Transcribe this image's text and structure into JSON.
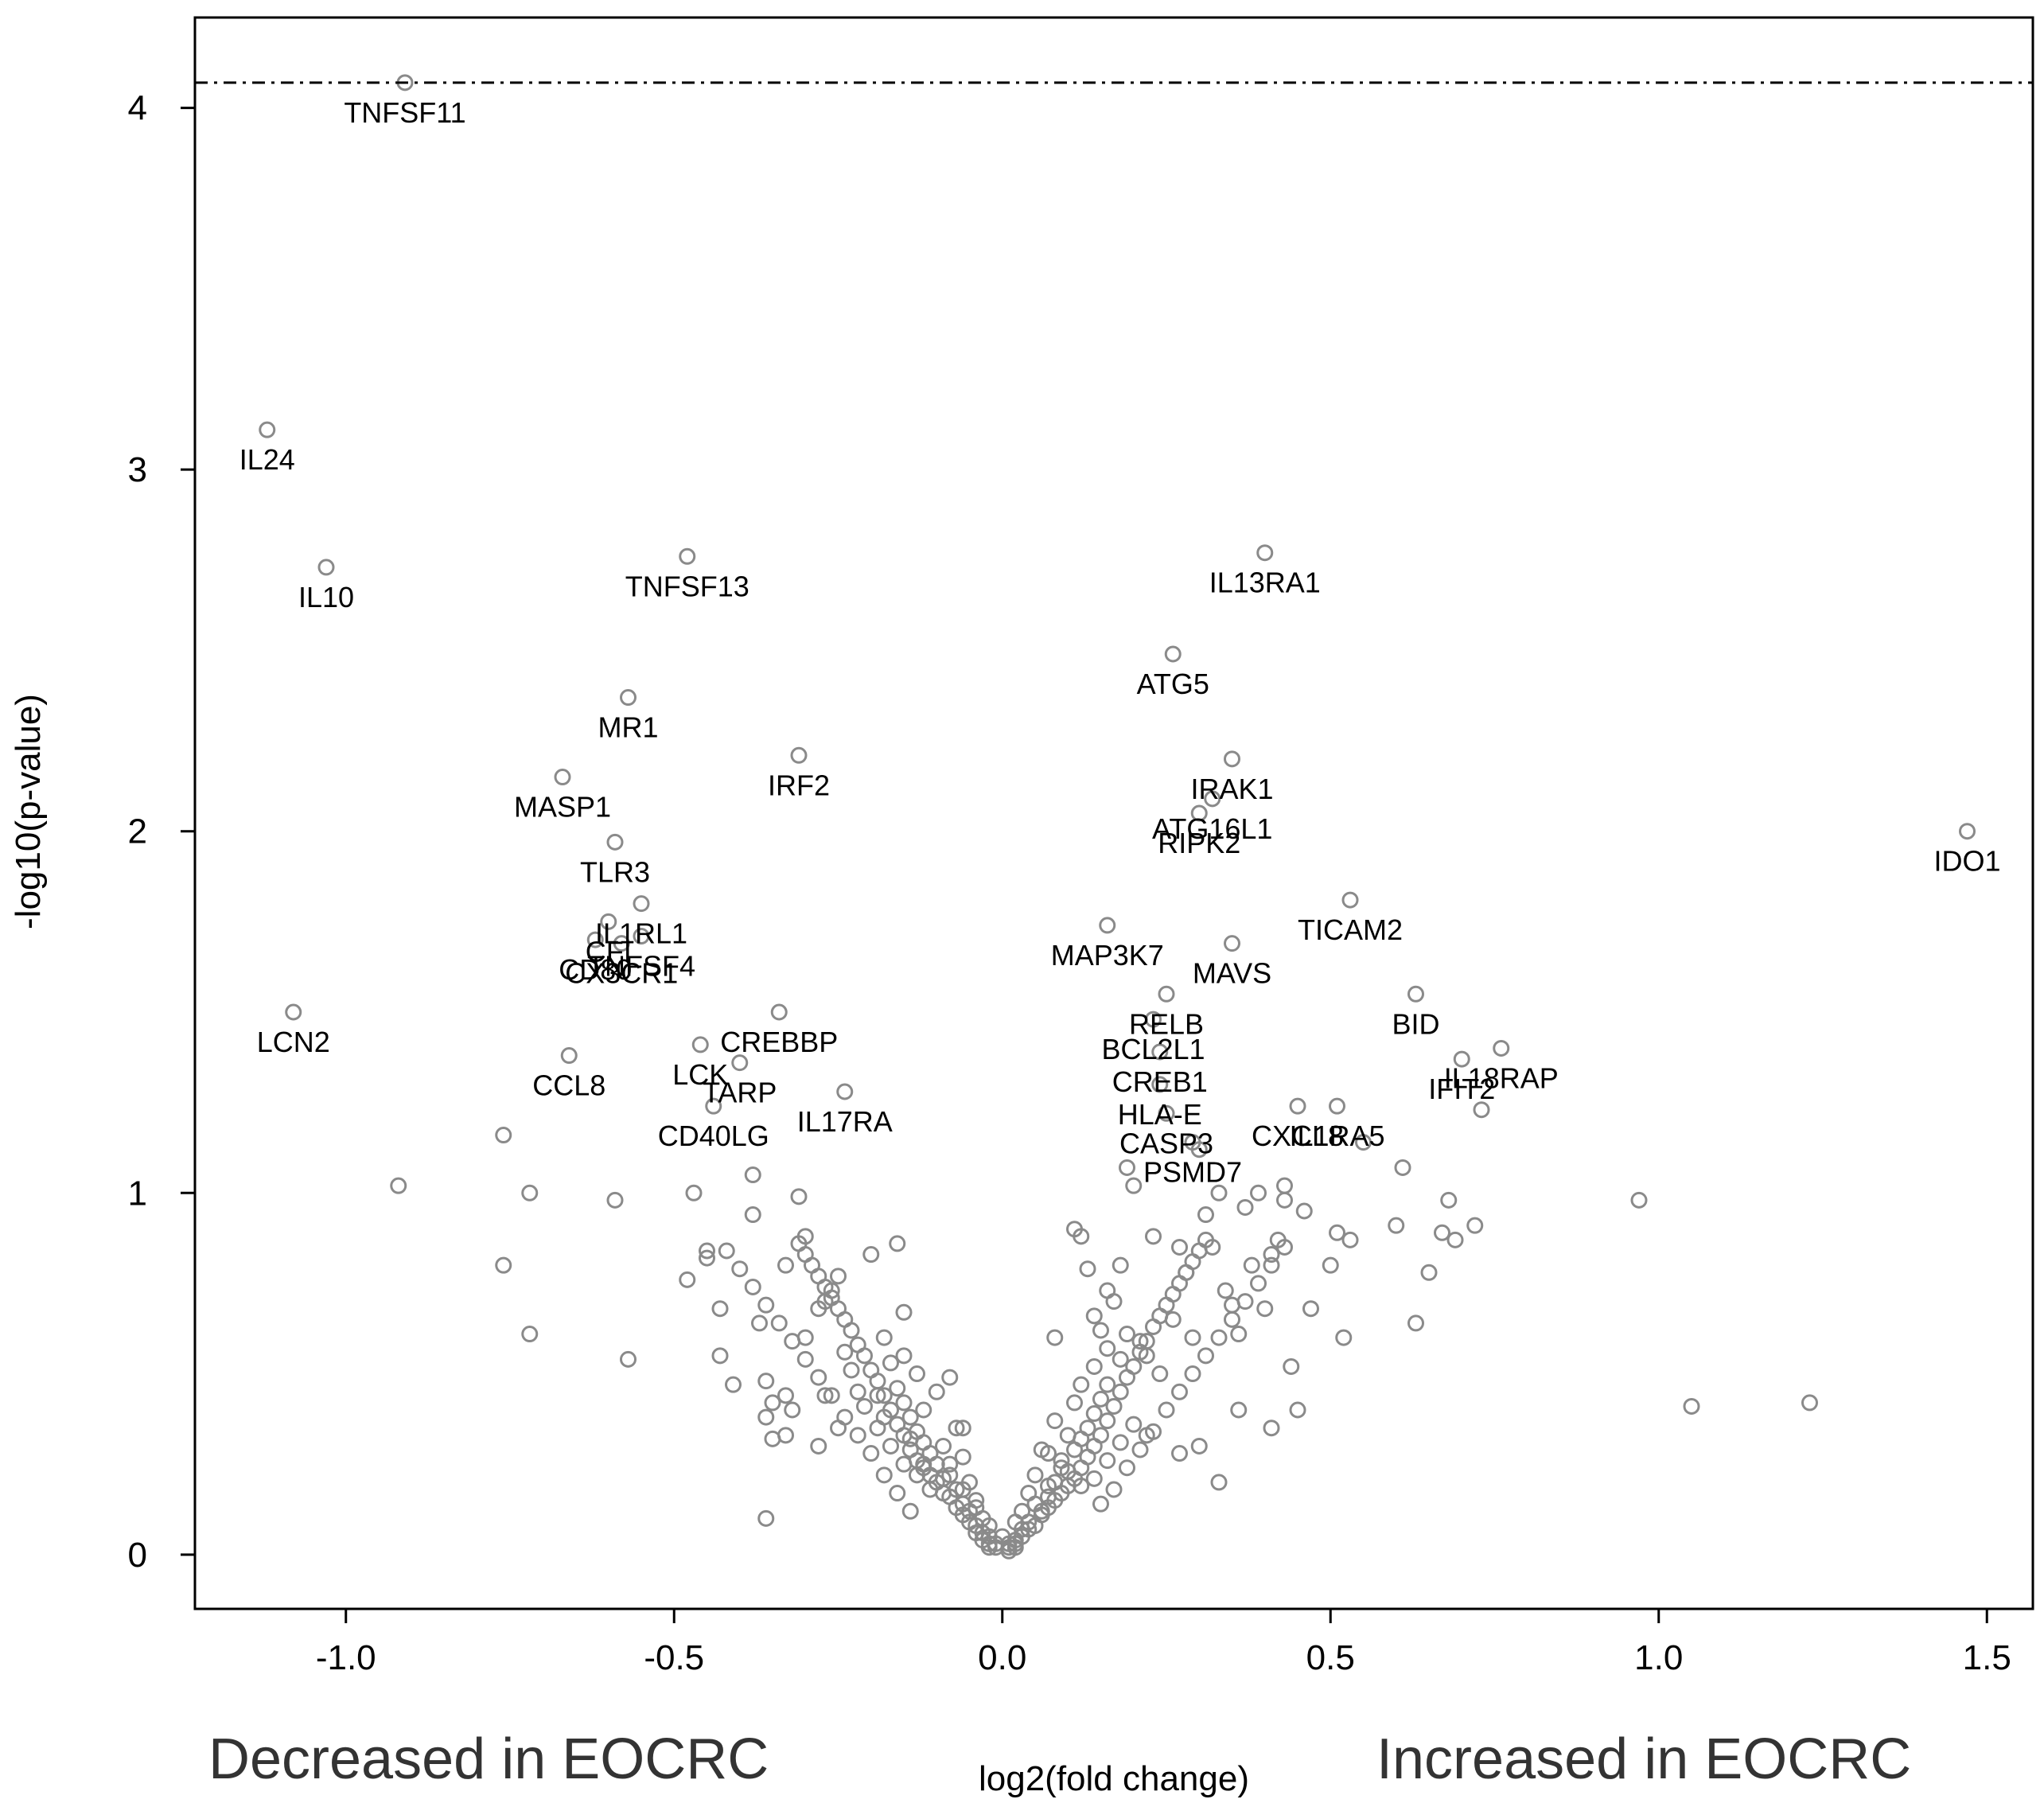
{
  "chart_data": {
    "type": "scatter",
    "title": "",
    "xlabel": "log2(fold change)",
    "ylabel": "-log10(p-value)",
    "xlim": [
      -1.23,
      1.57
    ],
    "ylim": [
      -0.15,
      4.25
    ],
    "xticks": [
      -1.0,
      -0.5,
      0.0,
      0.5,
      1.0,
      1.5
    ],
    "xtick_labels": [
      "-1.0",
      "-0.5",
      "0.0",
      "0.5",
      "1.0",
      "1.5"
    ],
    "yticks": [
      0,
      1,
      2,
      3,
      4
    ],
    "ytick_labels": [
      "0",
      "1",
      "2",
      "3",
      "4"
    ],
    "threshold_y": 4.07,
    "left_annotation": "Decreased in EOCRC",
    "right_annotation": "Increased in EOCRC",
    "colors": {
      "point": "#8a8a8a",
      "axis": "#000000",
      "annotation": "#333333"
    },
    "labeled_points": [
      {
        "label": "TNFSF11",
        "x": -0.91,
        "y": 4.07
      },
      {
        "label": "IL24",
        "x": -1.12,
        "y": 3.11
      },
      {
        "label": "IL10",
        "x": -1.03,
        "y": 2.73
      },
      {
        "label": "TNFSF13",
        "x": -0.48,
        "y": 2.76
      },
      {
        "label": "MR1",
        "x": -0.57,
        "y": 2.37
      },
      {
        "label": "MASP1",
        "x": -0.67,
        "y": 2.15
      },
      {
        "label": "IRF2",
        "x": -0.31,
        "y": 2.21
      },
      {
        "label": "TLR3",
        "x": -0.59,
        "y": 1.97
      },
      {
        "label": "IL1RL1",
        "x": -0.55,
        "y": 1.8
      },
      {
        "label": "CFI",
        "x": -0.6,
        "y": 1.75
      },
      {
        "label": "TNFSF4",
        "x": -0.55,
        "y": 1.71
      },
      {
        "label": "CD80",
        "x": -0.62,
        "y": 1.7
      },
      {
        "label": "CX3CR1",
        "x": -0.58,
        "y": 1.69
      },
      {
        "label": "LCN2",
        "x": -1.08,
        "y": 1.5
      },
      {
        "label": "CCL8",
        "x": -0.66,
        "y": 1.38
      },
      {
        "label": "CREBBP",
        "x": -0.34,
        "y": 1.5
      },
      {
        "label": "LCK",
        "x": -0.46,
        "y": 1.41
      },
      {
        "label": "TARP",
        "x": -0.4,
        "y": 1.36
      },
      {
        "label": "CD40LG",
        "x": -0.44,
        "y": 1.24
      },
      {
        "label": "IL17RA",
        "x": -0.24,
        "y": 1.28
      },
      {
        "label": "IL13RA1",
        "x": 0.4,
        "y": 2.77
      },
      {
        "label": "ATG5",
        "x": 0.26,
        "y": 2.49
      },
      {
        "label": "IRAK1",
        "x": 0.35,
        "y": 2.2
      },
      {
        "label": "ATG16L1",
        "x": 0.32,
        "y": 2.09
      },
      {
        "label": "RIPK2",
        "x": 0.3,
        "y": 2.05
      },
      {
        "label": "IDO1",
        "x": 1.47,
        "y": 2.0
      },
      {
        "label": "TICAM2",
        "x": 0.53,
        "y": 1.81
      },
      {
        "label": "MAP3K7",
        "x": 0.16,
        "y": 1.74
      },
      {
        "label": "MAVS",
        "x": 0.35,
        "y": 1.69
      },
      {
        "label": "RELB",
        "x": 0.25,
        "y": 1.55
      },
      {
        "label": "BID",
        "x": 0.63,
        "y": 1.55
      },
      {
        "label": "BCL2L1",
        "x": 0.23,
        "y": 1.48
      },
      {
        "label": "CREB1",
        "x": 0.24,
        "y": 1.39
      },
      {
        "label": "IL18RAP",
        "x": 0.76,
        "y": 1.4
      },
      {
        "label": "IFIT2",
        "x": 0.7,
        "y": 1.37
      },
      {
        "label": "HLA-E",
        "x": 0.24,
        "y": 1.3
      },
      {
        "label": "CASP3",
        "x": 0.25,
        "y": 1.22
      },
      {
        "label": "PSMD7",
        "x": 0.29,
        "y": 1.14
      },
      {
        "label": "CXCL8",
        "x": 0.45,
        "y": 1.24
      },
      {
        "label": "IL1RA5",
        "x": 0.51,
        "y": 1.24
      }
    ],
    "background_points": [
      [
        0.01,
        0.01
      ],
      [
        0.01,
        0.02
      ],
      [
        -0.02,
        0.02
      ],
      [
        -0.01,
        0.02
      ],
      [
        0.02,
        0.02
      ],
      [
        0.01,
        0.03
      ],
      [
        -0.01,
        0.03
      ],
      [
        0.02,
        0.03
      ],
      [
        -0.02,
        0.03
      ],
      [
        0.02,
        0.04
      ],
      [
        0.0,
        0.05
      ],
      [
        -0.03,
        0.04
      ],
      [
        0.03,
        0.05
      ],
      [
        -0.02,
        0.05
      ],
      [
        -0.03,
        0.06
      ],
      [
        0.03,
        0.07
      ],
      [
        0.04,
        0.07
      ],
      [
        -0.04,
        0.06
      ],
      [
        0.05,
        0.08
      ],
      [
        -0.04,
        0.08
      ],
      [
        -0.05,
        0.09
      ],
      [
        0.04,
        0.09
      ],
      [
        -0.06,
        0.11
      ],
      [
        0.06,
        0.11
      ],
      [
        -0.05,
        0.12
      ],
      [
        0.06,
        0.12
      ],
      [
        -0.07,
        0.13
      ],
      [
        0.07,
        0.13
      ],
      [
        -0.06,
        0.14
      ],
      [
        0.08,
        0.15
      ],
      [
        -0.08,
        0.16
      ],
      [
        0.07,
        0.16
      ],
      [
        -0.09,
        0.17
      ],
      [
        0.09,
        0.17
      ],
      [
        -0.07,
        0.18
      ],
      [
        0.1,
        0.19
      ],
      [
        -0.1,
        0.2
      ],
      [
        0.08,
        0.2
      ],
      [
        -0.09,
        0.21
      ],
      [
        0.11,
        0.21
      ],
      [
        -0.11,
        0.22
      ],
      [
        0.1,
        0.23
      ],
      [
        -0.12,
        0.24
      ],
      [
        0.12,
        0.24
      ],
      [
        -0.1,
        0.25
      ],
      [
        0.09,
        0.26
      ],
      [
        -0.13,
        0.26
      ],
      [
        0.13,
        0.27
      ],
      [
        -0.11,
        0.28
      ],
      [
        0.11,
        0.29
      ],
      [
        -0.14,
        0.29
      ],
      [
        0.14,
        0.3
      ],
      [
        -0.12,
        0.31
      ],
      [
        0.12,
        0.32
      ],
      [
        -0.15,
        0.33
      ],
      [
        0.15,
        0.33
      ],
      [
        -0.13,
        0.34
      ],
      [
        0.13,
        0.35
      ],
      [
        -0.16,
        0.36
      ],
      [
        0.16,
        0.37
      ],
      [
        -0.14,
        0.38
      ],
      [
        0.14,
        0.39
      ],
      [
        -0.17,
        0.4
      ],
      [
        0.17,
        0.41
      ],
      [
        -0.15,
        0.42
      ],
      [
        0.15,
        0.43
      ],
      [
        -0.18,
        0.44
      ],
      [
        0.18,
        0.45
      ],
      [
        -0.16,
        0.46
      ],
      [
        0.16,
        0.47
      ],
      [
        -0.19,
        0.48
      ],
      [
        0.19,
        0.49
      ],
      [
        -0.2,
        0.51
      ],
      [
        0.2,
        0.52
      ],
      [
        -0.17,
        0.53
      ],
      [
        0.18,
        0.54
      ],
      [
        -0.21,
        0.55
      ],
      [
        0.21,
        0.56
      ],
      [
        -0.22,
        0.58
      ],
      [
        0.22,
        0.59
      ],
      [
        -0.18,
        0.6
      ],
      [
        0.19,
        0.61
      ],
      [
        -0.23,
        0.62
      ],
      [
        0.23,
        0.63
      ],
      [
        -0.24,
        0.65
      ],
      [
        0.24,
        0.66
      ],
      [
        -0.25,
        0.68
      ],
      [
        0.25,
        0.69
      ],
      [
        -0.26,
        0.71
      ],
      [
        0.26,
        0.72
      ],
      [
        -0.27,
        0.74
      ],
      [
        0.27,
        0.75
      ],
      [
        -0.28,
        0.77
      ],
      [
        0.28,
        0.78
      ],
      [
        -0.29,
        0.8
      ],
      [
        0.29,
        0.81
      ],
      [
        -0.3,
        0.83
      ],
      [
        0.3,
        0.84
      ],
      [
        -0.31,
        0.86
      ],
      [
        0.31,
        0.87
      ],
      [
        -0.05,
        0.2
      ],
      [
        0.05,
        0.22
      ],
      [
        -0.08,
        0.25
      ],
      [
        0.07,
        0.28
      ],
      [
        -0.04,
        0.15
      ],
      [
        0.04,
        0.17
      ],
      [
        -0.09,
        0.3
      ],
      [
        0.1,
        0.33
      ],
      [
        -0.07,
        0.35
      ],
      [
        0.08,
        0.37
      ],
      [
        -0.12,
        0.4
      ],
      [
        0.11,
        0.42
      ],
      [
        -0.06,
        0.27
      ],
      [
        0.06,
        0.29
      ],
      [
        -0.1,
        0.45
      ],
      [
        0.12,
        0.47
      ],
      [
        -0.13,
        0.5
      ],
      [
        0.14,
        0.52
      ],
      [
        -0.15,
        0.55
      ],
      [
        0.16,
        0.57
      ],
      [
        -0.03,
        0.1
      ],
      [
        0.03,
        0.12
      ],
      [
        -0.02,
        0.08
      ],
      [
        0.02,
        0.09
      ],
      [
        -0.04,
        0.13
      ],
      [
        0.05,
        0.14
      ],
      [
        -0.06,
        0.18
      ],
      [
        0.07,
        0.19
      ],
      [
        -0.08,
        0.22
      ],
      [
        0.09,
        0.24
      ],
      [
        -0.11,
        0.18
      ],
      [
        0.12,
        0.19
      ],
      [
        -0.13,
        0.22
      ],
      [
        0.14,
        0.21
      ],
      [
        -0.15,
        0.25
      ],
      [
        0.16,
        0.26
      ],
      [
        -0.17,
        0.3
      ],
      [
        0.18,
        0.31
      ],
      [
        -0.19,
        0.35
      ],
      [
        0.2,
        0.36
      ],
      [
        -0.14,
        0.12
      ],
      [
        0.15,
        0.14
      ],
      [
        -0.16,
        0.17
      ],
      [
        0.17,
        0.18
      ],
      [
        -0.18,
        0.22
      ],
      [
        0.19,
        0.24
      ],
      [
        -0.2,
        0.28
      ],
      [
        0.21,
        0.29
      ],
      [
        -0.22,
        0.33
      ],
      [
        0.23,
        0.34
      ],
      [
        -0.24,
        0.38
      ],
      [
        0.25,
        0.4
      ],
      [
        -0.26,
        0.44
      ],
      [
        0.27,
        0.45
      ],
      [
        -0.28,
        0.49
      ],
      [
        0.29,
        0.5
      ],
      [
        -0.3,
        0.54
      ],
      [
        0.31,
        0.55
      ],
      [
        -0.32,
        0.59
      ],
      [
        0.33,
        0.6
      ],
      [
        -0.34,
        0.64
      ],
      [
        0.35,
        0.65
      ],
      [
        -0.36,
        0.69
      ],
      [
        0.37,
        0.7
      ],
      [
        -0.38,
        0.74
      ],
      [
        0.39,
        0.75
      ],
      [
        -0.4,
        0.79
      ],
      [
        0.41,
        0.8
      ],
      [
        -0.42,
        0.84
      ],
      [
        0.43,
        0.85
      ],
      [
        -0.76,
        0.8
      ],
      [
        -0.72,
        0.61
      ],
      [
        -0.76,
        1.16
      ],
      [
        -0.72,
        1.0
      ],
      [
        -0.92,
        1.02
      ],
      [
        -0.59,
        0.98
      ],
      [
        -0.57,
        0.54
      ],
      [
        -0.47,
        1.0
      ],
      [
        -0.48,
        0.76
      ],
      [
        -0.45,
        0.82
      ],
      [
        -0.45,
        0.84
      ],
      [
        -0.43,
        0.68
      ],
      [
        -0.43,
        0.55
      ],
      [
        -0.41,
        0.47
      ],
      [
        -0.38,
        1.05
      ],
      [
        -0.38,
        0.94
      ],
      [
        -0.37,
        0.64
      ],
      [
        -0.36,
        0.48
      ],
      [
        -0.36,
        0.38
      ],
      [
        -0.35,
        0.32
      ],
      [
        -0.36,
        0.1
      ],
      [
        -0.33,
        0.8
      ],
      [
        -0.33,
        0.44
      ],
      [
        -0.31,
        0.99
      ],
      [
        -0.3,
        0.88
      ],
      [
        -0.3,
        0.6
      ],
      [
        -0.28,
        0.68
      ],
      [
        -0.27,
        0.7
      ],
      [
        -0.26,
        0.73
      ],
      [
        -0.25,
        0.77
      ],
      [
        -0.24,
        0.56
      ],
      [
        -0.23,
        0.51
      ],
      [
        -0.22,
        0.45
      ],
      [
        -0.21,
        0.41
      ],
      [
        -0.2,
        0.83
      ],
      [
        -0.19,
        0.44
      ],
      [
        -0.18,
        0.38
      ],
      [
        -0.16,
        0.86
      ],
      [
        -0.15,
        0.67
      ],
      [
        -0.14,
        0.32
      ],
      [
        -0.12,
        0.25
      ],
      [
        -0.08,
        0.49
      ],
      [
        -0.06,
        0.35
      ],
      [
        0.08,
        0.6
      ],
      [
        0.11,
        0.9
      ],
      [
        0.12,
        0.88
      ],
      [
        0.13,
        0.79
      ],
      [
        0.14,
        0.66
      ],
      [
        0.15,
        0.62
      ],
      [
        0.16,
        0.73
      ],
      [
        0.17,
        0.7
      ],
      [
        0.18,
        0.8
      ],
      [
        0.19,
        1.07
      ],
      [
        0.2,
        1.02
      ],
      [
        0.21,
        0.59
      ],
      [
        0.22,
        0.55
      ],
      [
        0.23,
        0.88
      ],
      [
        0.24,
        0.5
      ],
      [
        0.26,
        0.65
      ],
      [
        0.27,
        0.85
      ],
      [
        0.28,
        0.78
      ],
      [
        0.29,
        0.6
      ],
      [
        0.3,
        1.12
      ],
      [
        0.31,
        0.94
      ],
      [
        0.32,
        0.85
      ],
      [
        0.33,
        1.0
      ],
      [
        0.34,
        0.73
      ],
      [
        0.35,
        0.69
      ],
      [
        0.36,
        0.61
      ],
      [
        0.37,
        0.96
      ],
      [
        0.38,
        0.8
      ],
      [
        0.39,
        1.0
      ],
      [
        0.4,
        0.68
      ],
      [
        0.41,
        0.83
      ],
      [
        0.42,
        0.87
      ],
      [
        0.43,
        1.02
      ],
      [
        0.43,
        0.98
      ],
      [
        0.44,
        0.52
      ],
      [
        0.45,
        0.4
      ],
      [
        0.46,
        0.95
      ],
      [
        0.47,
        0.68
      ],
      [
        0.5,
        0.8
      ],
      [
        0.51,
        0.89
      ],
      [
        0.52,
        0.6
      ],
      [
        0.53,
        0.87
      ],
      [
        0.55,
        1.14
      ],
      [
        0.6,
        0.91
      ],
      [
        0.61,
        1.07
      ],
      [
        0.63,
        0.64
      ],
      [
        0.65,
        0.78
      ],
      [
        0.67,
        0.89
      ],
      [
        0.68,
        0.98
      ],
      [
        0.69,
        0.87
      ],
      [
        0.72,
        0.91
      ],
      [
        0.73,
        1.23
      ],
      [
        0.97,
        0.98
      ],
      [
        1.05,
        0.41
      ],
      [
        1.23,
        0.42
      ],
      [
        0.33,
        0.2
      ],
      [
        0.3,
        0.3
      ],
      [
        0.27,
        0.28
      ],
      [
        0.22,
        0.33
      ],
      [
        0.36,
        0.4
      ],
      [
        0.41,
        0.35
      ],
      [
        -0.25,
        0.35
      ],
      [
        -0.28,
        0.3
      ],
      [
        -0.32,
        0.4
      ],
      [
        -0.35,
        0.42
      ],
      [
        -0.33,
        0.33
      ],
      [
        -0.27,
        0.44
      ]
    ]
  }
}
